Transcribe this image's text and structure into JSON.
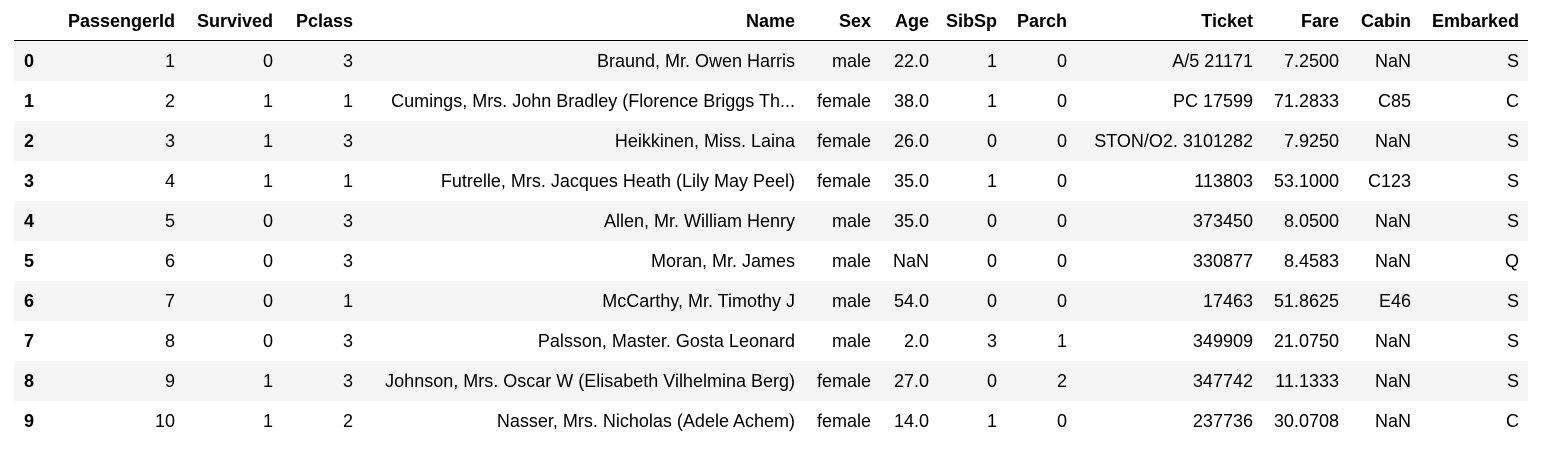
{
  "table": {
    "columns": [
      "",
      "PassengerId",
      "Survived",
      "Pclass",
      "Name",
      "Sex",
      "Age",
      "SibSp",
      "Parch",
      "Ticket",
      "Fare",
      "Cabin",
      "Embarked"
    ],
    "rows": [
      [
        "0",
        "1",
        "0",
        "3",
        "Braund, Mr. Owen Harris",
        "male",
        "22.0",
        "1",
        "0",
        "A/5 21171",
        "7.2500",
        "NaN",
        "S"
      ],
      [
        "1",
        "2",
        "1",
        "1",
        "Cumings, Mrs. John Bradley (Florence Briggs Th...",
        "female",
        "38.0",
        "1",
        "0",
        "PC 17599",
        "71.2833",
        "C85",
        "C"
      ],
      [
        "2",
        "3",
        "1",
        "3",
        "Heikkinen, Miss. Laina",
        "female",
        "26.0",
        "0",
        "0",
        "STON/O2. 3101282",
        "7.9250",
        "NaN",
        "S"
      ],
      [
        "3",
        "4",
        "1",
        "1",
        "Futrelle, Mrs. Jacques Heath (Lily May Peel)",
        "female",
        "35.0",
        "1",
        "0",
        "113803",
        "53.1000",
        "C123",
        "S"
      ],
      [
        "4",
        "5",
        "0",
        "3",
        "Allen, Mr. William Henry",
        "male",
        "35.0",
        "0",
        "0",
        "373450",
        "8.0500",
        "NaN",
        "S"
      ],
      [
        "5",
        "6",
        "0",
        "3",
        "Moran, Mr. James",
        "male",
        "NaN",
        "0",
        "0",
        "330877",
        "8.4583",
        "NaN",
        "Q"
      ],
      [
        "6",
        "7",
        "0",
        "1",
        "McCarthy, Mr. Timothy J",
        "male",
        "54.0",
        "0",
        "0",
        "17463",
        "51.8625",
        "E46",
        "S"
      ],
      [
        "7",
        "8",
        "0",
        "3",
        "Palsson, Master. Gosta Leonard",
        "male",
        "2.0",
        "3",
        "1",
        "349909",
        "21.0750",
        "NaN",
        "S"
      ],
      [
        "8",
        "9",
        "1",
        "3",
        "Johnson, Mrs. Oscar W (Elisabeth Vilhelmina Berg)",
        "female",
        "27.0",
        "0",
        "2",
        "347742",
        "11.1333",
        "NaN",
        "S"
      ],
      [
        "9",
        "10",
        "1",
        "2",
        "Nasser, Mrs. Nicholas (Adele Achem)",
        "female",
        "14.0",
        "1",
        "0",
        "237736",
        "30.0708",
        "NaN",
        "C"
      ]
    ]
  },
  "colors": {
    "striped_row": "#f5f5f5",
    "header_rule": "#000000",
    "text": "#000000"
  }
}
